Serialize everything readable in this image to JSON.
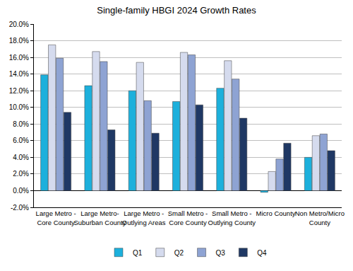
{
  "chart_data": {
    "type": "bar",
    "title": "Single-family HBGI 2024 Growth Rates",
    "categories": [
      "Large Metro - Core County",
      "Large Metro-Suburban County",
      "Large Metro - Outlying Areas",
      "Small Metro - Core County",
      "Small Metro - Outlying County",
      "Micro County",
      "Non Metro/Micro County"
    ],
    "series": [
      {
        "name": "Q1",
        "color": "#1cb0dc",
        "values": [
          13.9,
          12.6,
          12.0,
          10.7,
          12.3,
          -0.2,
          4.0
        ]
      },
      {
        "name": "Q2",
        "color": "#d5dbee",
        "values": [
          17.5,
          16.7,
          15.4,
          16.6,
          15.6,
          2.3,
          6.6
        ]
      },
      {
        "name": "Q3",
        "color": "#8ea3d3",
        "values": [
          15.9,
          15.5,
          10.8,
          16.3,
          13.4,
          3.8,
          6.8
        ]
      },
      {
        "name": "Q4",
        "color": "#1f3864",
        "values": [
          9.4,
          7.3,
          6.9,
          10.3,
          8.7,
          5.7,
          4.8
        ]
      }
    ],
    "ylim": [
      -2,
      20
    ],
    "yticks": [
      {
        "value": -2,
        "label": "-2.0%"
      },
      {
        "value": 0,
        "label": "0.0%"
      },
      {
        "value": 2,
        "label": "2.0%"
      },
      {
        "value": 4,
        "label": "4.0%"
      },
      {
        "value": 6,
        "label": "6.0%"
      },
      {
        "value": 8,
        "label": "8.0%"
      },
      {
        "value": 10,
        "label": "10.0%"
      },
      {
        "value": 12,
        "label": "12.0%"
      },
      {
        "value": 14,
        "label": "14.0%"
      },
      {
        "value": 16,
        "label": "16.0%"
      },
      {
        "value": 18,
        "label": "18.0%"
      },
      {
        "value": 20,
        "label": "20.0%"
      }
    ],
    "grid": true,
    "legend": "bottom"
  }
}
